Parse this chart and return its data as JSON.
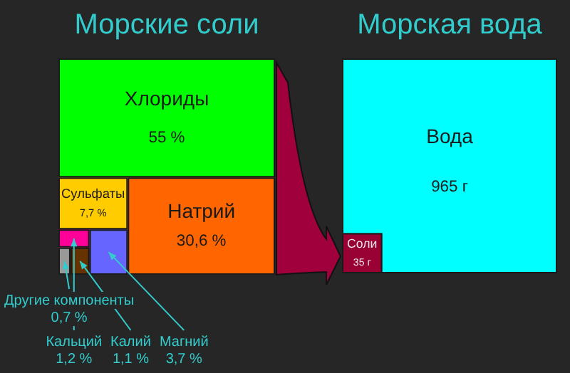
{
  "chart_data": [
    {
      "type": "other",
      "title": "Морские соли",
      "categories": [
        "Хлориды",
        "Натрий",
        "Сульфаты",
        "Магний",
        "Кальций",
        "Калий",
        "Другие компоненты"
      ],
      "values": [
        55,
        30.6,
        7.7,
        3.7,
        1.2,
        1.1,
        0.7
      ],
      "value_labels": [
        "55 %",
        "30,6 %",
        "7,7 %",
        "3,7 %",
        "1,2 %",
        "1,1 %",
        "0,7 %"
      ],
      "colors": [
        "#00ff00",
        "#ff6600",
        "#ffcc00",
        "#6666ff",
        "#ff0099",
        "#663300",
        "#999999"
      ]
    },
    {
      "type": "other",
      "title": "Морская вода",
      "categories": [
        "Вода",
        "Соли"
      ],
      "values": [
        965,
        35
      ],
      "value_labels": [
        "965 г",
        "35 г"
      ],
      "colors": [
        "#00ffff",
        "#990033"
      ]
    }
  ]
}
